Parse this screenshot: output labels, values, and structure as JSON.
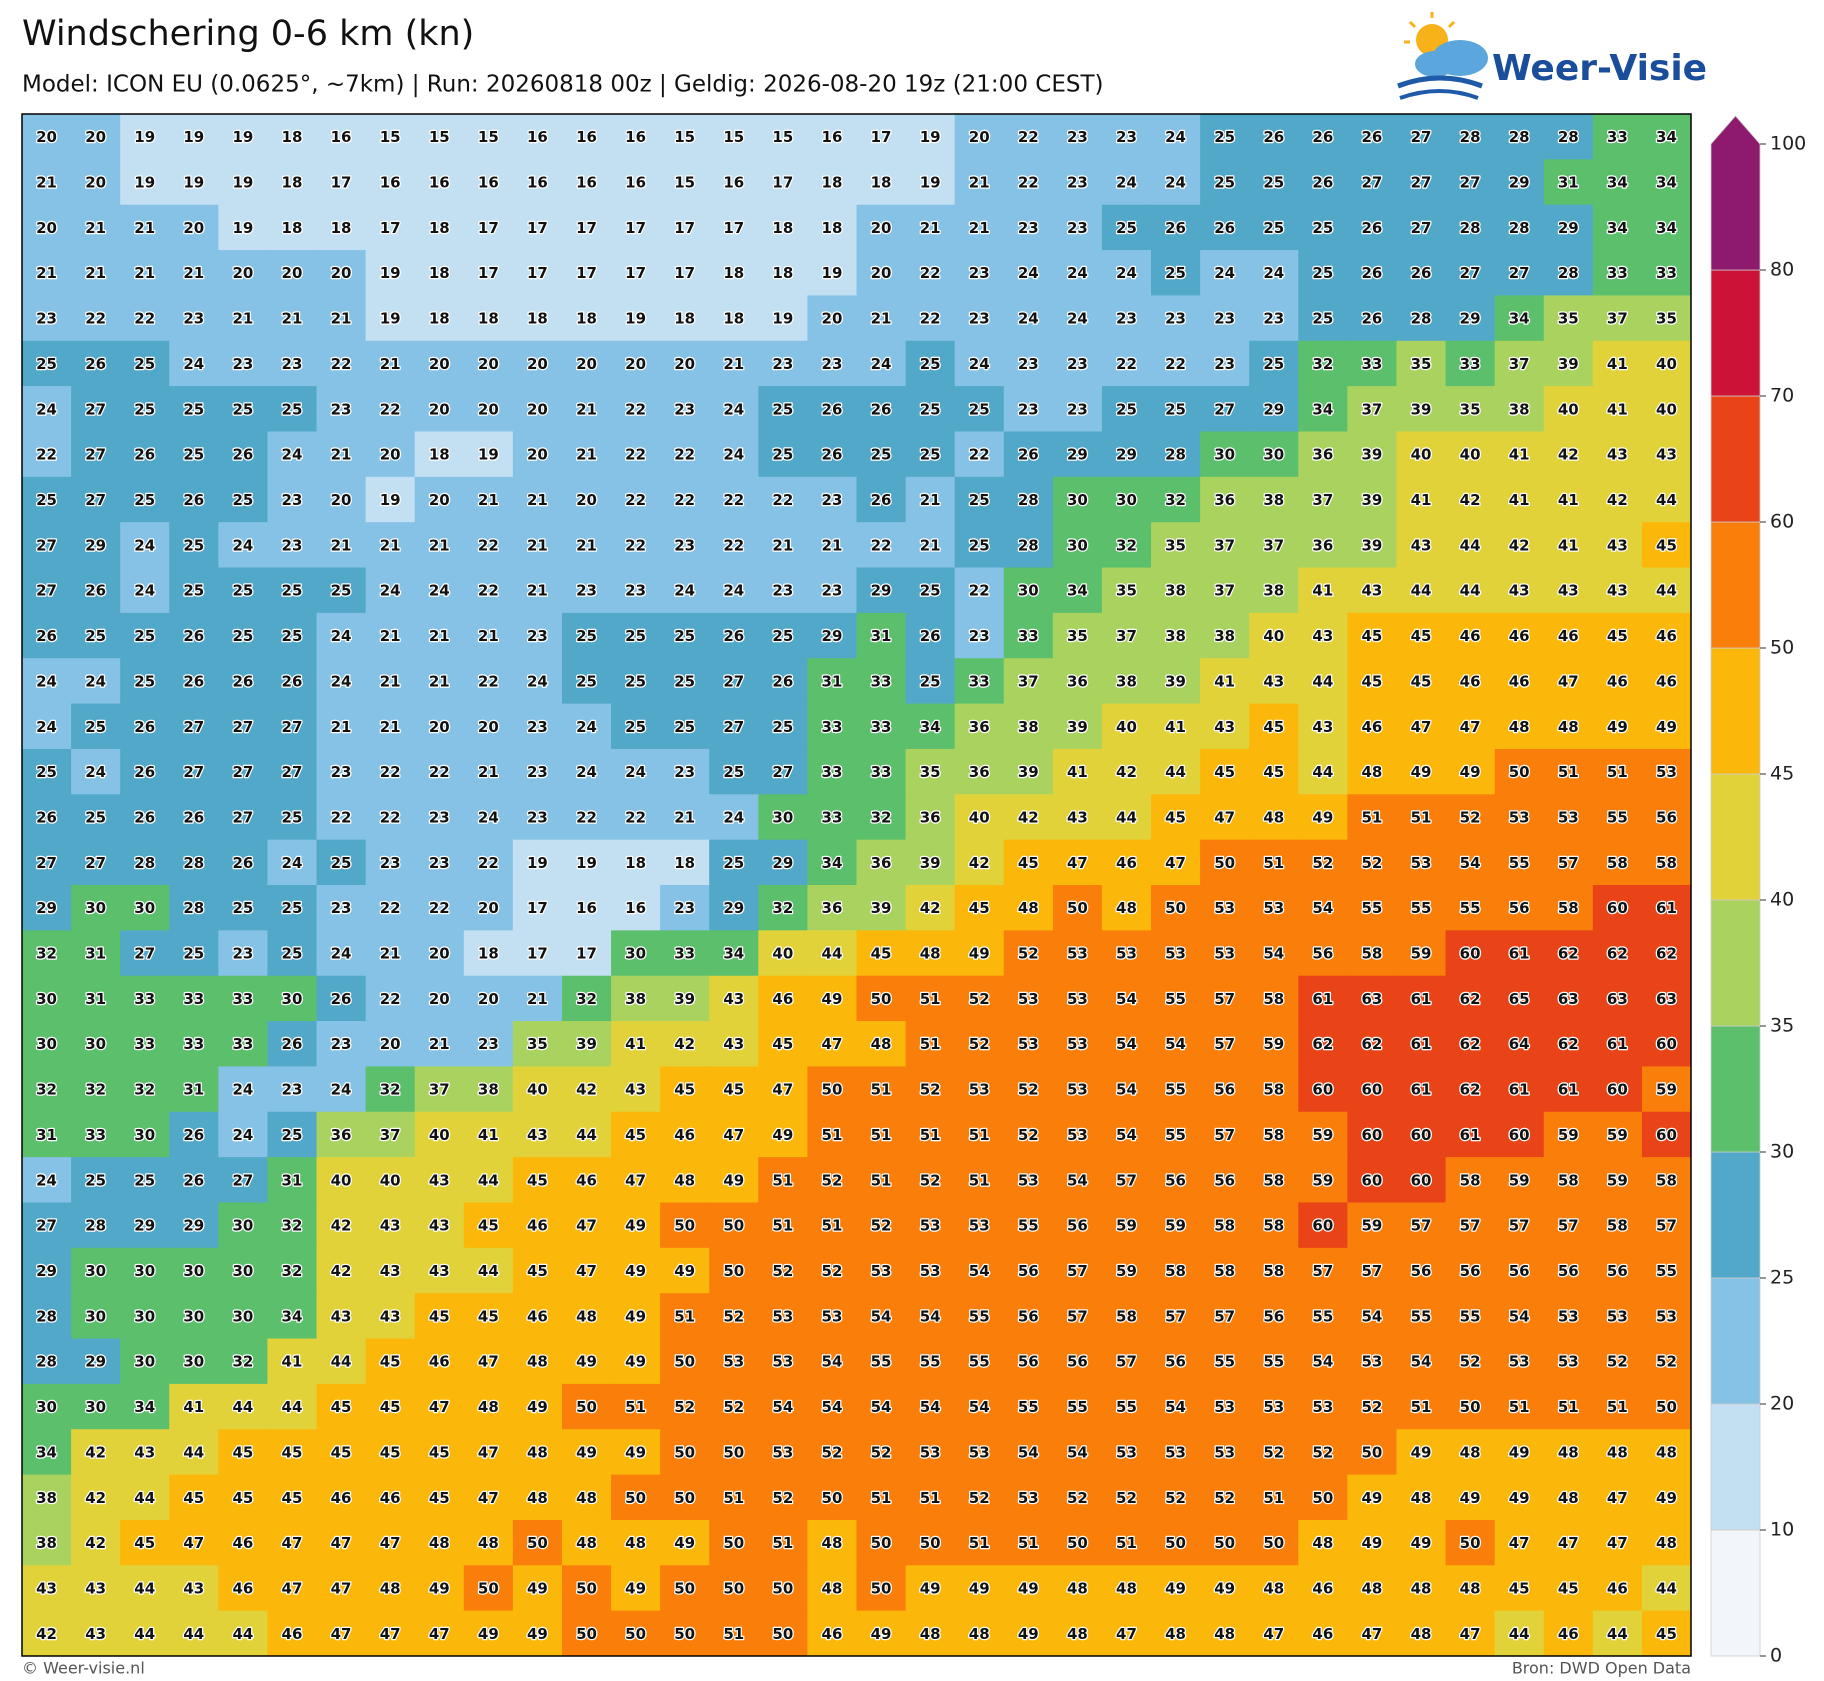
{
  "header": {
    "title": "Windschering 0-6 km (kn)",
    "subtitle": "Model: ICON EU (0.0625°, ~7km)  |  Run: 20260818 00z  |  Geldig: 2026-08-20 19z (21:00 CEST)"
  },
  "logo": {
    "text": "Weer-Visie"
  },
  "map": {
    "values": [
      [
        20,
        20,
        19,
        19,
        19,
        18,
        16,
        15,
        15,
        15,
        16,
        16,
        16,
        15,
        15,
        15,
        16,
        17,
        19,
        20,
        22,
        23,
        23,
        24,
        25,
        26,
        26,
        26,
        27,
        28,
        28,
        28,
        33,
        34
      ],
      [
        21,
        20,
        19,
        19,
        19,
        18,
        17,
        16,
        16,
        16,
        16,
        16,
        16,
        15,
        16,
        17,
        18,
        18,
        19,
        21,
        22,
        23,
        24,
        24,
        25,
        25,
        26,
        27,
        27,
        27,
        29,
        31,
        34,
        34
      ],
      [
        20,
        21,
        21,
        20,
        19,
        18,
        18,
        17,
        18,
        17,
        17,
        17,
        17,
        17,
        17,
        18,
        18,
        20,
        21,
        21,
        23,
        23,
        25,
        26,
        26,
        25,
        25,
        26,
        27,
        28,
        28,
        29,
        34,
        34
      ],
      [
        21,
        21,
        21,
        21,
        20,
        20,
        20,
        19,
        18,
        17,
        17,
        17,
        17,
        17,
        18,
        18,
        19,
        20,
        22,
        23,
        24,
        24,
        24,
        25,
        24,
        24,
        25,
        26,
        26,
        27,
        27,
        28,
        33,
        33
      ],
      [
        23,
        22,
        22,
        23,
        21,
        21,
        21,
        19,
        18,
        18,
        18,
        18,
        19,
        18,
        18,
        19,
        20,
        21,
        22,
        23,
        24,
        24,
        23,
        23,
        23,
        23,
        25,
        26,
        28,
        29,
        34,
        35,
        37,
        35
      ],
      [
        25,
        26,
        25,
        24,
        23,
        23,
        22,
        21,
        20,
        20,
        20,
        20,
        20,
        20,
        21,
        23,
        23,
        24,
        25,
        24,
        23,
        23,
        22,
        22,
        23,
        25,
        32,
        33,
        35,
        33,
        37,
        39,
        41,
        40
      ],
      [
        24,
        27,
        25,
        25,
        25,
        25,
        23,
        22,
        20,
        20,
        20,
        21,
        22,
        23,
        24,
        25,
        26,
        26,
        25,
        25,
        23,
        23,
        25,
        25,
        27,
        29,
        34,
        37,
        39,
        35,
        38,
        40,
        41,
        40
      ],
      [
        22,
        27,
        26,
        25,
        26,
        24,
        21,
        20,
        18,
        19,
        20,
        21,
        22,
        22,
        24,
        25,
        26,
        25,
        25,
        22,
        26,
        29,
        29,
        28,
        30,
        30,
        36,
        39,
        40,
        40,
        41,
        42,
        43,
        43
      ],
      [
        25,
        27,
        25,
        26,
        25,
        23,
        20,
        19,
        20,
        21,
        21,
        20,
        22,
        22,
        22,
        22,
        23,
        26,
        21,
        25,
        28,
        30,
        30,
        32,
        36,
        38,
        37,
        39,
        41,
        42,
        41,
        41,
        42,
        44
      ],
      [
        27,
        29,
        24,
        25,
        24,
        23,
        21,
        21,
        21,
        22,
        21,
        21,
        22,
        23,
        22,
        21,
        21,
        22,
        21,
        25,
        28,
        30,
        32,
        35,
        37,
        37,
        36,
        39,
        43,
        44,
        42,
        41,
        43,
        45
      ],
      [
        27,
        26,
        24,
        25,
        25,
        25,
        25,
        24,
        24,
        22,
        21,
        23,
        23,
        24,
        24,
        23,
        23,
        29,
        25,
        22,
        30,
        34,
        35,
        38,
        37,
        38,
        41,
        43,
        44,
        44,
        43,
        43,
        43,
        44
      ],
      [
        26,
        25,
        25,
        26,
        25,
        25,
        24,
        21,
        21,
        21,
        23,
        25,
        25,
        25,
        26,
        25,
        29,
        31,
        26,
        23,
        33,
        35,
        37,
        38,
        38,
        40,
        43,
        45,
        45,
        46,
        46,
        46,
        45,
        46
      ],
      [
        24,
        24,
        25,
        26,
        26,
        26,
        24,
        21,
        21,
        22,
        24,
        25,
        25,
        25,
        27,
        26,
        31,
        33,
        25,
        33,
        37,
        36,
        38,
        39,
        41,
        43,
        44,
        45,
        45,
        46,
        46,
        47,
        46,
        46
      ],
      [
        24,
        25,
        26,
        27,
        27,
        27,
        21,
        21,
        20,
        20,
        23,
        24,
        25,
        25,
        27,
        25,
        33,
        33,
        34,
        36,
        38,
        39,
        40,
        41,
        43,
        45,
        43,
        46,
        47,
        47,
        48,
        48,
        49,
        49
      ],
      [
        25,
        24,
        26,
        27,
        27,
        27,
        23,
        22,
        22,
        21,
        23,
        24,
        24,
        23,
        25,
        27,
        33,
        33,
        35,
        36,
        39,
        41,
        42,
        44,
        45,
        45,
        44,
        48,
        49,
        49,
        50,
        51,
        51,
        53
      ],
      [
        26,
        25,
        26,
        26,
        27,
        25,
        22,
        22,
        23,
        24,
        23,
        22,
        22,
        21,
        24,
        30,
        33,
        32,
        36,
        40,
        42,
        43,
        44,
        45,
        47,
        48,
        49,
        51,
        51,
        52,
        53,
        53,
        55,
        56
      ],
      [
        27,
        27,
        28,
        28,
        26,
        24,
        25,
        23,
        23,
        22,
        19,
        19,
        18,
        18,
        25,
        29,
        34,
        36,
        39,
        42,
        45,
        47,
        46,
        47,
        50,
        51,
        52,
        52,
        53,
        54,
        55,
        57,
        58,
        58
      ],
      [
        29,
        30,
        30,
        28,
        25,
        25,
        23,
        22,
        22,
        20,
        17,
        16,
        16,
        23,
        29,
        32,
        36,
        39,
        42,
        45,
        48,
        50,
        48,
        50,
        53,
        53,
        54,
        55,
        55,
        55,
        56,
        58,
        60,
        61
      ],
      [
        32,
        31,
        27,
        25,
        23,
        25,
        24,
        21,
        20,
        18,
        17,
        17,
        30,
        33,
        34,
        40,
        44,
        45,
        48,
        49,
        52,
        53,
        53,
        53,
        53,
        54,
        56,
        58,
        59,
        60,
        61,
        62,
        62,
        62
      ],
      [
        30,
        31,
        33,
        33,
        33,
        30,
        26,
        22,
        20,
        20,
        21,
        32,
        38,
        39,
        43,
        46,
        49,
        50,
        51,
        52,
        53,
        53,
        54,
        55,
        57,
        58,
        61,
        63,
        61,
        62,
        65,
        63,
        63,
        63
      ],
      [
        30,
        30,
        33,
        33,
        33,
        26,
        23,
        20,
        21,
        23,
        35,
        39,
        41,
        42,
        43,
        45,
        47,
        48,
        51,
        52,
        53,
        53,
        54,
        54,
        57,
        59,
        62,
        62,
        61,
        62,
        64,
        62,
        61,
        60
      ],
      [
        32,
        32,
        32,
        31,
        24,
        23,
        24,
        32,
        37,
        38,
        40,
        42,
        43,
        45,
        45,
        47,
        50,
        51,
        52,
        53,
        52,
        53,
        54,
        55,
        56,
        58,
        60,
        60,
        61,
        62,
        61,
        61,
        60,
        59
      ],
      [
        31,
        33,
        30,
        26,
        24,
        25,
        36,
        37,
        40,
        41,
        43,
        44,
        45,
        46,
        47,
        49,
        51,
        51,
        51,
        51,
        52,
        53,
        54,
        55,
        57,
        58,
        59,
        60,
        60,
        61,
        60,
        59,
        59,
        60
      ],
      [
        24,
        25,
        25,
        26,
        27,
        31,
        40,
        40,
        43,
        44,
        45,
        46,
        47,
        48,
        49,
        51,
        52,
        51,
        52,
        51,
        53,
        54,
        57,
        56,
        56,
        58,
        59,
        60,
        60,
        58,
        59,
        58,
        59,
        58
      ],
      [
        27,
        28,
        29,
        29,
        30,
        32,
        42,
        43,
        43,
        45,
        46,
        47,
        49,
        50,
        50,
        51,
        51,
        52,
        53,
        53,
        55,
        56,
        59,
        59,
        58,
        58,
        60,
        59,
        57,
        57,
        57,
        57,
        58,
        57
      ],
      [
        29,
        30,
        30,
        30,
        30,
        32,
        42,
        43,
        43,
        44,
        45,
        47,
        49,
        49,
        50,
        52,
        52,
        53,
        53,
        54,
        56,
        57,
        59,
        58,
        58,
        58,
        57,
        57,
        56,
        56,
        56,
        56,
        56,
        55
      ],
      [
        28,
        30,
        30,
        30,
        30,
        34,
        43,
        43,
        45,
        45,
        46,
        48,
        49,
        51,
        52,
        53,
        53,
        54,
        54,
        55,
        56,
        57,
        58,
        57,
        57,
        56,
        55,
        54,
        55,
        55,
        54,
        53,
        53,
        53
      ],
      [
        28,
        29,
        30,
        30,
        32,
        41,
        44,
        45,
        46,
        47,
        48,
        49,
        49,
        50,
        53,
        53,
        54,
        55,
        55,
        55,
        56,
        56,
        57,
        56,
        55,
        55,
        54,
        53,
        54,
        52,
        53,
        53,
        52,
        52
      ],
      [
        30,
        30,
        34,
        41,
        44,
        44,
        45,
        45,
        47,
        48,
        49,
        50,
        51,
        52,
        52,
        54,
        54,
        54,
        54,
        54,
        55,
        55,
        55,
        54,
        53,
        53,
        53,
        52,
        51,
        50,
        51,
        51,
        51,
        50
      ],
      [
        34,
        42,
        43,
        44,
        45,
        45,
        45,
        45,
        45,
        47,
        48,
        49,
        49,
        50,
        50,
        53,
        52,
        52,
        53,
        53,
        54,
        54,
        53,
        53,
        53,
        52,
        52,
        50,
        49,
        48,
        49,
        48,
        48,
        48
      ],
      [
        38,
        42,
        44,
        45,
        45,
        45,
        46,
        46,
        45,
        47,
        48,
        48,
        50,
        50,
        51,
        52,
        50,
        51,
        51,
        52,
        53,
        52,
        52,
        52,
        52,
        51,
        50,
        49,
        48,
        49,
        49,
        48,
        47,
        49
      ],
      [
        38,
        42,
        45,
        47,
        46,
        47,
        47,
        47,
        48,
        48,
        50,
        48,
        48,
        49,
        50,
        51,
        48,
        50,
        50,
        51,
        51,
        50,
        51,
        50,
        50,
        50,
        48,
        49,
        49,
        50,
        47,
        47,
        47,
        48
      ],
      [
        43,
        43,
        44,
        43,
        46,
        47,
        47,
        48,
        49,
        50,
        49,
        50,
        49,
        50,
        50,
        50,
        48,
        50,
        49,
        49,
        49,
        48,
        48,
        49,
        49,
        48,
        46,
        48,
        48,
        48,
        45,
        45,
        46,
        44
      ],
      [
        42,
        43,
        44,
        44,
        44,
        46,
        47,
        47,
        47,
        49,
        49,
        50,
        50,
        50,
        51,
        50,
        46,
        49,
        48,
        48,
        49,
        48,
        47,
        48,
        48,
        47,
        46,
        47,
        48,
        47,
        44,
        46,
        44,
        45
      ]
    ]
  },
  "colorbar": {
    "levels": [
      0,
      10,
      20,
      25,
      30,
      35,
      40,
      45,
      50,
      60,
      70,
      80,
      100
    ],
    "colors": [
      "#f2f6fa",
      "#c2e0f2",
      "#86c2e6",
      "#52a8c8",
      "#5cbf6c",
      "#a9d35e",
      "#e2d23a",
      "#fbb80a",
      "#fa7e0a",
      "#e84418",
      "#cc1236",
      "#8e1a6e"
    ]
  },
  "footer": {
    "left": "© Weer-visie.nl",
    "right": "Bron: DWD Open Data"
  }
}
